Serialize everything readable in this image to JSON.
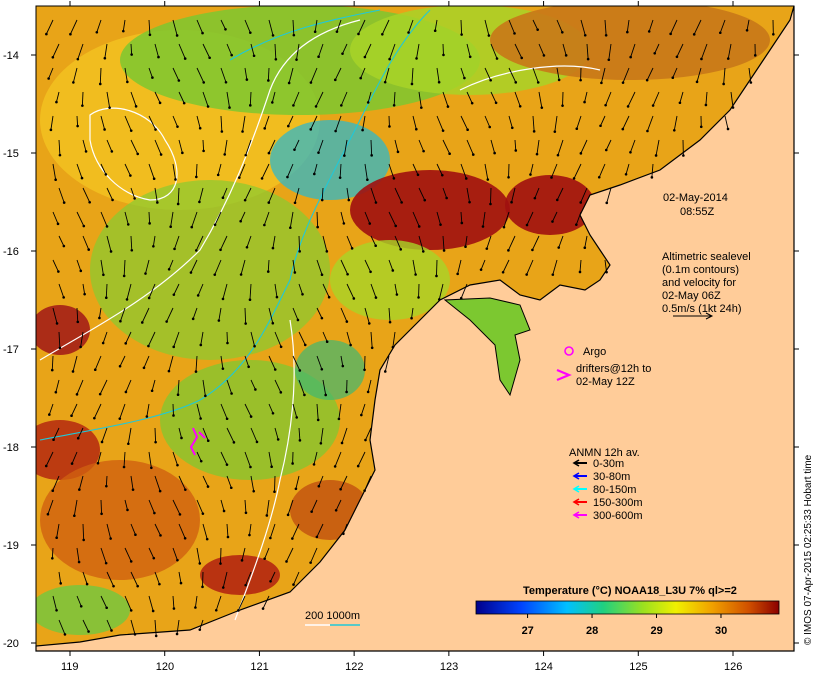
{
  "map": {
    "timestamp_line1": "02-May-2014",
    "timestamp_line2": "08:55Z",
    "altimetry_lines": [
      "Altimetric sealevel",
      "(0.1m contours)",
      "and velocity for",
      "02-May 06Z",
      "0.5m/s (1kt 24h)"
    ],
    "argo_label": "Argo",
    "drifters_line1": "drifters@12h to",
    "drifters_line2": "02-May 12Z",
    "anmn_title": "ANMN 12h av.",
    "anmn_legend": [
      {
        "label": "0-30m",
        "color": "#000000"
      },
      {
        "label": "30-80m",
        "color": "#0000ff"
      },
      {
        "label": "80-150m",
        "color": "#00ffff"
      },
      {
        "label": "150-300m",
        "color": "#ff0000"
      },
      {
        "label": "300-600m",
        "color": "#ff00ff"
      }
    ],
    "isobath_label": "200  1000m",
    "credit": "© IMOS 07-Apr-2015 02:25:33 Hobart time",
    "colorbar": {
      "title": "Temperature (°C) NOAA18_L3U 7% ql>=2",
      "ticks": [
        "27",
        "28",
        "29",
        "30"
      ],
      "min": 26.2,
      "max": 30.9,
      "tick_values": [
        27,
        28,
        29,
        30
      ]
    },
    "lat_ticks": [
      "-14",
      "-15",
      "-16",
      "-17",
      "-18",
      "-19",
      "-20"
    ],
    "lon_ticks": [
      "119",
      "120",
      "121",
      "122",
      "123",
      "124",
      "125",
      "126"
    ],
    "lat_values": [
      -14,
      -15,
      -16,
      -17,
      -18,
      -19,
      -20
    ],
    "lon_values": [
      119,
      120,
      121,
      122,
      123,
      124,
      125,
      126
    ],
    "land_color": "#ffcc99"
  }
}
